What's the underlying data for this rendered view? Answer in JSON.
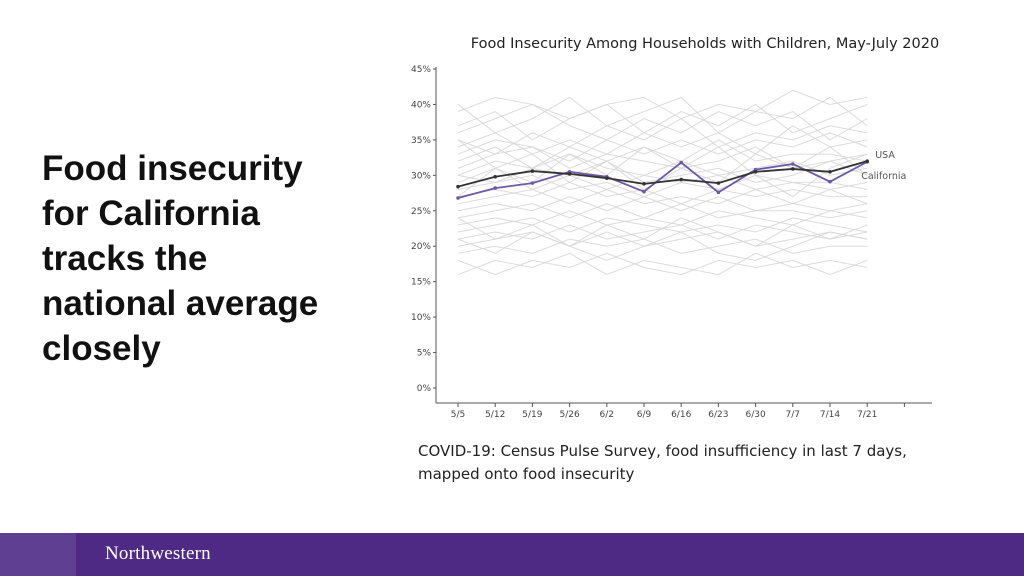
{
  "headline": "Food insecurity\nfor California\ntracks the\nnational average\nclosely",
  "caption": "COVID-19: Census Pulse Survey, food insufficiency in last 7 days, mapped onto food insecurity",
  "footer": {
    "brand": "Northwestern",
    "color": "#4e2a84"
  },
  "chart_data": {
    "type": "line",
    "title": "Food Insecurity Among Households with Children, May-July 2020",
    "xlabel": "",
    "ylabel": "",
    "categories": [
      "5/5",
      "5/12",
      "5/19",
      "5/26",
      "6/2",
      "6/9",
      "6/16",
      "6/23",
      "6/30",
      "7/7",
      "7/14",
      "7/21"
    ],
    "ylim": [
      0,
      45
    ],
    "yticks": [
      "0%",
      "5%",
      "10%",
      "15%",
      "20%",
      "25%",
      "30%",
      "35%",
      "40%",
      "45%"
    ],
    "grid": false,
    "series": [
      {
        "name": "USA",
        "color": "#333333",
        "values": [
          28.4,
          29.8,
          30.6,
          30.2,
          29.6,
          28.8,
          29.4,
          28.9,
          30.5,
          30.9,
          30.5,
          32.0
        ]
      },
      {
        "name": "California",
        "color": "#6b5aa6",
        "values": [
          26.8,
          28.2,
          28.9,
          30.5,
          29.8,
          27.7,
          31.8,
          27.6,
          30.8,
          31.6,
          29.1,
          31.9
        ]
      }
    ],
    "background_series_color": "#d7d7d7",
    "background_series": [
      [
        39,
        41,
        40,
        38,
        40,
        41,
        38,
        40,
        39,
        42,
        40,
        41
      ],
      [
        40,
        36,
        38,
        41,
        37,
        39,
        41,
        36,
        39,
        38,
        41,
        37
      ],
      [
        37,
        39,
        35,
        38,
        40,
        36,
        39,
        37,
        40,
        36,
        38,
        40
      ],
      [
        36,
        38,
        40,
        37,
        35,
        38,
        36,
        39,
        37,
        39,
        35,
        38
      ],
      [
        35,
        33,
        36,
        34,
        37,
        35,
        38,
        34,
        36,
        35,
        37,
        36
      ],
      [
        34,
        36,
        33,
        35,
        33,
        36,
        34,
        36,
        33,
        37,
        34,
        35
      ],
      [
        33,
        35,
        34,
        32,
        35,
        33,
        35,
        33,
        35,
        34,
        36,
        34
      ],
      [
        32,
        34,
        31,
        34,
        32,
        34,
        32,
        35,
        32,
        33,
        33,
        32
      ],
      [
        31,
        33,
        34,
        31,
        33,
        32,
        31,
        32,
        34,
        31,
        32,
        33
      ],
      [
        30,
        32,
        31,
        33,
        31,
        30,
        32,
        30,
        31,
        32,
        30,
        31
      ],
      [
        30,
        29,
        31,
        30,
        32,
        29,
        30,
        31,
        29,
        30,
        32,
        30
      ],
      [
        29,
        31,
        28,
        30,
        28,
        30,
        29,
        28,
        30,
        29,
        28,
        29
      ],
      [
        28,
        29,
        30,
        28,
        29,
        27,
        29,
        30,
        28,
        29,
        29,
        28
      ],
      [
        27,
        28,
        27,
        29,
        27,
        28,
        26,
        28,
        27,
        28,
        27,
        27
      ],
      [
        26,
        27,
        28,
        26,
        28,
        26,
        27,
        26,
        28,
        26,
        28,
        26
      ],
      [
        25,
        26,
        25,
        27,
        25,
        27,
        25,
        27,
        25,
        26,
        25,
        26
      ],
      [
        24,
        25,
        26,
        24,
        26,
        24,
        26,
        24,
        25,
        25,
        24,
        25
      ],
      [
        23,
        24,
        23,
        25,
        23,
        24,
        23,
        25,
        24,
        23,
        25,
        24
      ],
      [
        22,
        23,
        24,
        22,
        24,
        23,
        22,
        23,
        22,
        24,
        23,
        22
      ],
      [
        21,
        22,
        21,
        23,
        21,
        22,
        23,
        21,
        23,
        22,
        21,
        23
      ],
      [
        20,
        21,
        22,
        20,
        22,
        20,
        21,
        22,
        20,
        21,
        22,
        21
      ],
      [
        19,
        20,
        19,
        21,
        20,
        21,
        19,
        20,
        21,
        19,
        20,
        20
      ],
      [
        21,
        19,
        22,
        20,
        18,
        20,
        22,
        19,
        18,
        20,
        22,
        21
      ],
      [
        18,
        16,
        18,
        17,
        19,
        17,
        16,
        18,
        17,
        18,
        16,
        18
      ],
      [
        16,
        18,
        17,
        19,
        16,
        18,
        17,
        16,
        19,
        17,
        18,
        17
      ],
      [
        24,
        21,
        23,
        20,
        23,
        21,
        24,
        22,
        20,
        23,
        21,
        22
      ],
      [
        35,
        31,
        29,
        33,
        30,
        34,
        31,
        29,
        33,
        31,
        34,
        30
      ],
      [
        27,
        31,
        33,
        29,
        32,
        28,
        31,
        34,
        30,
        27,
        31,
        33
      ]
    ]
  }
}
